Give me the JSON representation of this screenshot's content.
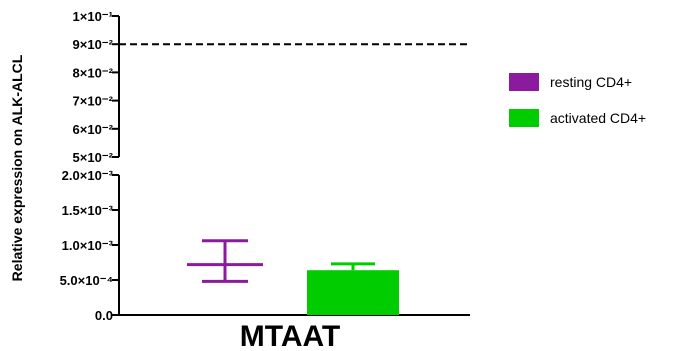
{
  "chart_data": {
    "type": "bar",
    "categories": [
      "MTAAT"
    ],
    "ylabel": "Relative expression on ALK-ALCL",
    "xlabel": "",
    "axis_break": true,
    "y_lower_segment": {
      "ylim": [
        0,
        0.002
      ],
      "ticks": [
        {
          "value": 0,
          "label": "0.0"
        },
        {
          "value": 0.0005,
          "label": "5.0×10⁻⁴"
        },
        {
          "value": 0.001,
          "label": "1.0×10⁻³"
        },
        {
          "value": 0.0015,
          "label": "1.5×10⁻³"
        },
        {
          "value": 0.002,
          "label": "2.0×10⁻³"
        }
      ]
    },
    "y_upper_segment": {
      "ylim": [
        0.05,
        0.1
      ],
      "ticks": [
        {
          "value": 0.05,
          "label": "5×10⁻²"
        },
        {
          "value": 0.06,
          "label": "6×10⁻²"
        },
        {
          "value": 0.07,
          "label": "7×10⁻²"
        },
        {
          "value": 0.08,
          "label": "8×10⁻²"
        },
        {
          "value": 0.09,
          "label": "9×10⁻²"
        },
        {
          "value": 0.1,
          "label": "1×10⁻¹"
        }
      ]
    },
    "reference_line": {
      "value": 0.09,
      "style": "dashed"
    },
    "series": [
      {
        "name": "resting CD4+",
        "color": "#8B1A9E",
        "style": "mean-error",
        "mean": 0.00072,
        "err_low": 0.00048,
        "err_high": 0.00106
      },
      {
        "name": "activated CD4+",
        "color": "#00CC00",
        "style": "bar",
        "value": 0.00064,
        "err_low": 0.00064,
        "err_high": 0.00073
      }
    ],
    "legend": {
      "position": "right",
      "entries": [
        "resting CD4+",
        "activated CD4+"
      ]
    }
  }
}
